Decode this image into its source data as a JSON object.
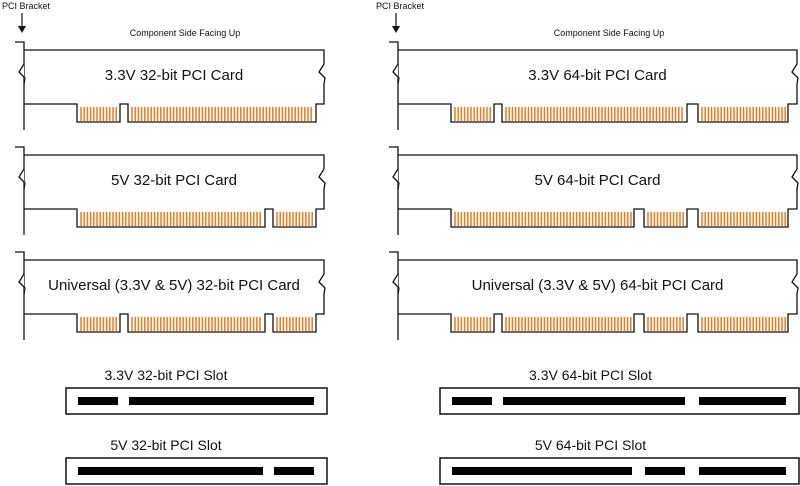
{
  "columns": [
    {
      "bracket_label": "PCI Bracket",
      "orientation_label": "Component Side Facing Up",
      "width": "32-bit",
      "cards": [
        {
          "label": "3.3V 32-bit PCI Card",
          "keys": [
            "3.3V"
          ]
        },
        {
          "label": "5V 32-bit PCI Card",
          "keys": [
            "5V"
          ]
        },
        {
          "label": "Universal (3.3V & 5V) 32-bit PCI Card",
          "keys": [
            "3.3V",
            "5V"
          ]
        }
      ],
      "slots": [
        {
          "label": "3.3V 32-bit PCI Slot",
          "key": "3.3V"
        },
        {
          "label": "5V 32-bit PCI Slot",
          "key": "5V"
        }
      ]
    },
    {
      "bracket_label": "PCI Bracket",
      "orientation_label": "Component Side Facing Up",
      "width": "64-bit",
      "cards": [
        {
          "label": "3.3V 64-bit PCI Card",
          "keys": [
            "3.3V"
          ]
        },
        {
          "label": "5V 64-bit PCI Card",
          "keys": [
            "5V"
          ]
        },
        {
          "label": "Universal (3.3V & 5V) 64-bit PCI Card",
          "keys": [
            "3.3V",
            "5V"
          ]
        }
      ],
      "slots": [
        {
          "label": "3.3V 64-bit PCI Slot",
          "key": "3.3V"
        },
        {
          "label": "5V 64-bit PCI Slot",
          "key": "5V"
        }
      ]
    }
  ],
  "colors": {
    "contact": "#f07a1a",
    "line": "#111111",
    "slot_bar": "#000000"
  }
}
